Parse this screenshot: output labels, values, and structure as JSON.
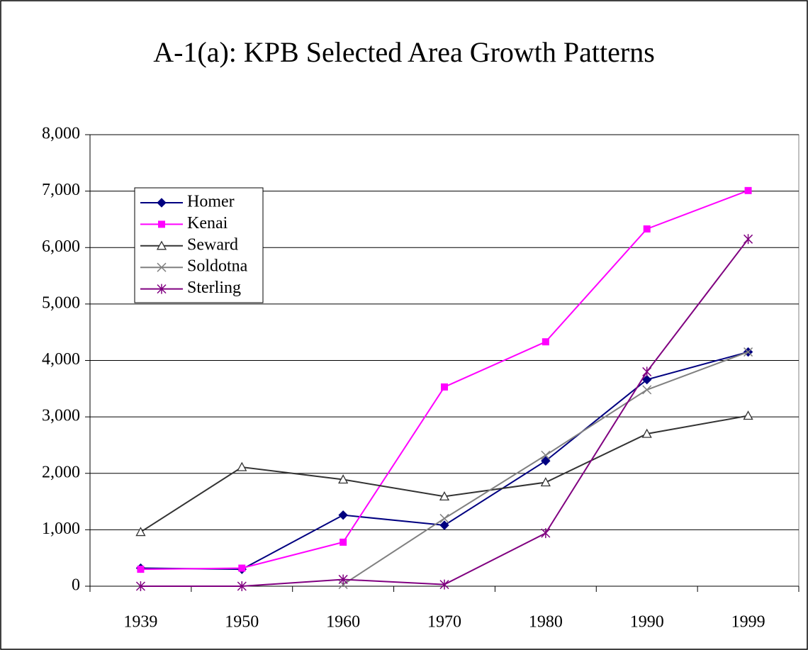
{
  "chart_data": {
    "type": "line",
    "title": "A-1(a):  KPB Selected Area Growth Patterns",
    "categories": [
      "1939",
      "1950",
      "1960",
      "1970",
      "1980",
      "1990",
      "1999"
    ],
    "series": [
      {
        "name": "Homer",
        "color": "#000080",
        "marker": "diamond",
        "values": [
          320,
          300,
          1260,
          1080,
          2220,
          3660,
          4150
        ]
      },
      {
        "name": "Kenai",
        "color": "#ff00ff",
        "marker": "square",
        "values": [
          300,
          320,
          780,
          3530,
          4330,
          6330,
          7010
        ]
      },
      {
        "name": "Seward",
        "color": "#333333",
        "marker": "triangle",
        "values": [
          960,
          2110,
          1890,
          1590,
          1840,
          2700,
          3020
        ]
      },
      {
        "name": "Soldotna",
        "color": "#808080",
        "marker": "x",
        "values": [
          null,
          null,
          30,
          1200,
          2320,
          3480,
          4150
        ]
      },
      {
        "name": "Sterling",
        "color": "#800080",
        "marker": "asterisk",
        "values": [
          0,
          0,
          120,
          30,
          940,
          3800,
          6150
        ]
      }
    ],
    "ylim": [
      0,
      8000
    ],
    "yticks": [
      0,
      {
        "value": 1000,
        "label": "1,000"
      },
      {
        "value": 2000,
        "label": "2,000"
      },
      {
        "value": 3000,
        "label": "3,000"
      },
      {
        "value": 4000,
        "label": "4,000"
      },
      {
        "value": 5000,
        "label": "5,000"
      },
      {
        "value": 6000,
        "label": "6,000"
      },
      {
        "value": 7000,
        "label": "7,000"
      },
      {
        "value": 8000,
        "label": "8,000"
      }
    ],
    "grid": true,
    "legend": "upper-left"
  }
}
